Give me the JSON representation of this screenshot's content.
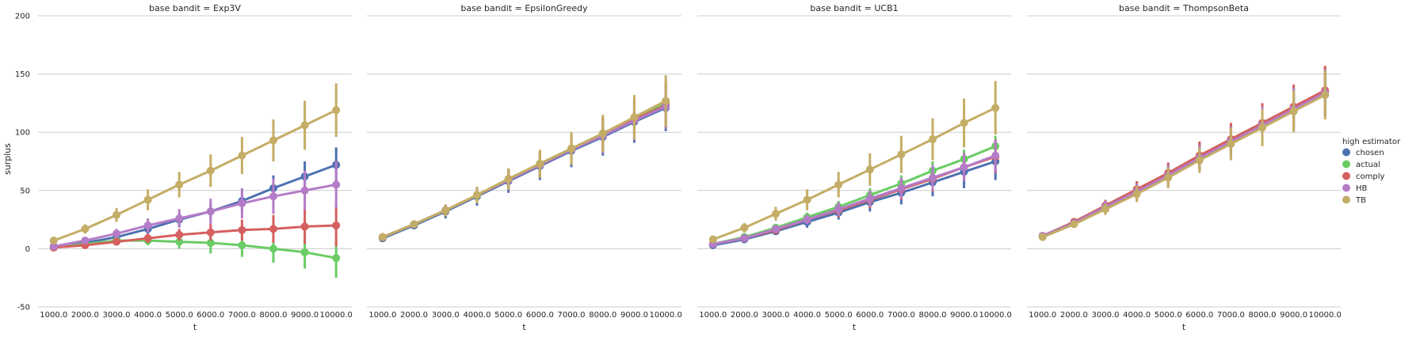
{
  "chart_data": {
    "type": "line",
    "facet_title_prefix": "base bandit = ",
    "xlabel": "t",
    "ylabel": "surplus",
    "categories": [
      "1000.0",
      "2000.0",
      "3000.0",
      "4000.0",
      "5000.0",
      "6000.0",
      "7000.0",
      "8000.0",
      "9000.0",
      "10000.0"
    ],
    "ylim": [
      -50,
      200
    ],
    "yticks": [
      -50,
      0,
      50,
      100,
      150,
      200
    ],
    "grid": "horizontal",
    "legend": {
      "title": "high estimator",
      "placement": "right",
      "entries": [
        "chosen",
        "actual",
        "comply",
        "HB",
        "TB"
      ]
    },
    "colors": {
      "chosen": "#4c72b0",
      "actual": "#6acc64",
      "comply": "#d65f5f",
      "HB": "#b47cc7",
      "TB": "#c4ad66"
    },
    "panels": [
      {
        "base_bandit": "Exp3V",
        "series": [
          {
            "name": "chosen",
            "values": [
              2,
              5,
              10,
              17,
              25,
              32,
              41,
              52,
              62,
              72
            ],
            "err": [
              1,
              2,
              3,
              4,
              6,
              7,
              9,
              11,
              13,
              15
            ]
          },
          {
            "name": "actual",
            "values": [
              1,
              4,
              7,
              7,
              6,
              5,
              3,
              0,
              -3,
              -8
            ],
            "err": [
              1,
              2,
              3,
              4,
              6,
              9,
              10,
              12,
              14,
              17
            ]
          },
          {
            "name": "comply",
            "values": [
              1,
              3,
              6,
              9,
              12,
              14,
              16,
              17,
              19,
              20
            ],
            "err": [
              1,
              2,
              3,
              4,
              5,
              7,
              9,
              12,
              15,
              18
            ]
          },
          {
            "name": "HB",
            "values": [
              2,
              7,
              13,
              20,
              26,
              32,
              39,
              45,
              50,
              55
            ],
            "err": [
              1,
              2,
              4,
              6,
              8,
              11,
              13,
              15,
              17,
              20
            ]
          },
          {
            "name": "TB",
            "values": [
              7,
              17,
              29,
              42,
              55,
              67,
              80,
              93,
              106,
              119
            ],
            "err": [
              2,
              4,
              6,
              9,
              11,
              14,
              16,
              18,
              21,
              23
            ]
          }
        ]
      },
      {
        "base_bandit": "EpsilonGreedy",
        "series": [
          {
            "name": "chosen",
            "values": [
              9,
              20,
              32,
              45,
              58,
              71,
              84,
              96,
              109,
              121
            ],
            "err": [
              2,
              3,
              6,
              8,
              10,
              12,
              14,
              16,
              18,
              20
            ]
          },
          {
            "name": "actual",
            "values": [
              10,
              21,
              33,
              46,
              60,
              73,
              86,
              99,
              112,
              125
            ],
            "err": [
              2,
              3,
              5,
              7,
              9,
              11,
              12,
              14,
              16,
              18
            ]
          },
          {
            "name": "comply",
            "values": [
              10,
              21,
              33,
              46,
              59,
              72,
              85,
              98,
              111,
              123
            ],
            "err": [
              2,
              3,
              5,
              7,
              9,
              11,
              13,
              15,
              17,
              20
            ]
          },
          {
            "name": "HB",
            "values": [
              10,
              21,
              33,
              46,
              59,
              72,
              85,
              97,
              110,
              122
            ],
            "err": [
              2,
              3,
              5,
              7,
              9,
              11,
              13,
              15,
              17,
              19
            ]
          },
          {
            "name": "TB",
            "values": [
              10,
              21,
              33,
              46,
              60,
              73,
              86,
              99,
              113,
              127
            ],
            "err": [
              2,
              3,
              5,
              7,
              9,
              12,
              14,
              16,
              19,
              22
            ]
          }
        ]
      },
      {
        "base_bandit": "UCB1",
        "series": [
          {
            "name": "chosen",
            "values": [
              3,
              8,
              15,
              23,
              31,
              40,
              48,
              57,
              66,
              75
            ],
            "err": [
              1,
              2,
              3,
              5,
              6,
              8,
              10,
              12,
              14,
              16
            ]
          },
          {
            "name": "actual",
            "values": [
              4,
              10,
              18,
              27,
              36,
              46,
              56,
              67,
              77,
              88
            ],
            "err": [
              1,
              2,
              3,
              4,
              5,
              6,
              7,
              8,
              8,
              9
            ]
          },
          {
            "name": "comply",
            "values": [
              4,
              9,
              16,
              25,
              33,
              42,
              51,
              60,
              70,
              79
            ],
            "err": [
              1,
              2,
              3,
              4,
              6,
              7,
              9,
              11,
              12,
              14
            ]
          },
          {
            "name": "HB",
            "values": [
              4,
              9,
              17,
              25,
              34,
              43,
              52,
              61,
              70,
              80
            ],
            "err": [
              1,
              2,
              3,
              4,
              6,
              7,
              9,
              11,
              12,
              14
            ]
          },
          {
            "name": "TB",
            "values": [
              8,
              18,
              30,
              42,
              55,
              68,
              81,
              94,
              108,
              121
            ],
            "err": [
              2,
              4,
              6,
              9,
              11,
              14,
              16,
              18,
              21,
              23
            ]
          }
        ]
      },
      {
        "base_bandit": "ThompsonBeta",
        "series": [
          {
            "name": "chosen",
            "values": [
              11,
              22,
              37,
              50,
              64,
              78,
              92,
              106,
              120,
              134
            ],
            "err": [
              2,
              3,
              5,
              7,
              9,
              11,
              13,
              16,
              18,
              20
            ]
          },
          {
            "name": "actual",
            "values": [
              11,
              23,
              37,
              51,
              65,
              80,
              94,
              108,
              122,
              135
            ],
            "err": [
              2,
              3,
              5,
              7,
              9,
              11,
              14,
              16,
              18,
              20
            ]
          },
          {
            "name": "comply",
            "values": [
              11,
              23,
              37,
              51,
              65,
              80,
              94,
              108,
              122,
              136
            ],
            "err": [
              2,
              3,
              5,
              7,
              9,
              12,
              14,
              17,
              19,
              21
            ]
          },
          {
            "name": "HB",
            "values": [
              11,
              22,
              36,
              49,
              63,
              78,
              92,
              106,
              120,
              134
            ],
            "err": [
              2,
              3,
              5,
              7,
              9,
              11,
              13,
              16,
              18,
              20
            ]
          },
          {
            "name": "TB",
            "values": [
              10,
              21,
              34,
              47,
              61,
              76,
              90,
              104,
              118,
              132
            ],
            "err": [
              2,
              3,
              5,
              7,
              9,
              11,
              14,
              16,
              18,
              21
            ]
          }
        ]
      }
    ]
  }
}
